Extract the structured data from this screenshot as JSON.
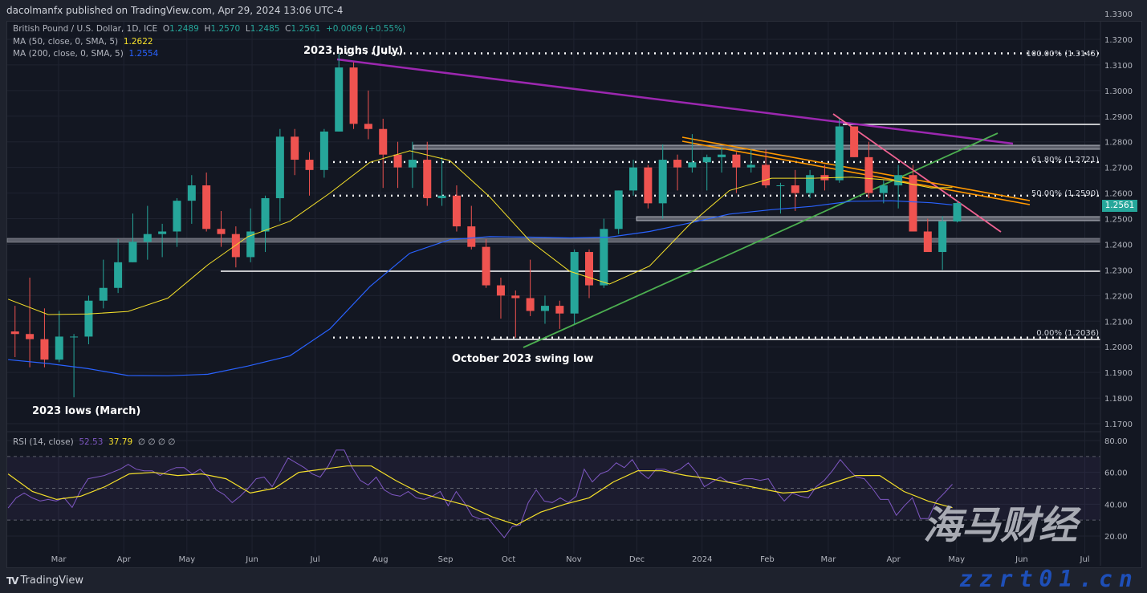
{
  "header": {
    "published": "dacolmanfx published on TradingView.com, Apr 29, 2024 13:06 UTC-4",
    "symbol": "British Pound / U.S. Dollar, 1D, ICE",
    "o_label": "O",
    "o": "1.2489",
    "h_label": "H",
    "h": "1.2570",
    "l_label": "L",
    "l": "1.2485",
    "c_label": "C",
    "c": "1.2561",
    "change": "+0.0069 (+0.55%)",
    "ma50_label": "MA (50, close, 0, SMA, 5)",
    "ma50_value": "1.2622",
    "ma200_label": "MA (200, close, 0, SMA, 5)",
    "ma200_value": "1.2554",
    "rsi_label": "RSI (14, close)",
    "rsi_value": "52.53",
    "rsi_ma_value": "37.79",
    "rsi_extra": "∅ ∅ ∅ ∅"
  },
  "current_price": "1.2561",
  "annotations": {
    "highs": "2023 highs (July)",
    "swing_low": "October 2023 swing low",
    "lows": "2023 lows (March)",
    "fib100": "100.00% (1.3145)",
    "fib618": "61.80% (1.2721)",
    "fib50": "50.00% (1.2590)",
    "fib0": "0.00% (1.2036)"
  },
  "footer": {
    "logo": "TradingView",
    "logo_mark": "TV"
  },
  "watermark": {
    "text": "海马财经",
    "url": "zzrt01.cn"
  },
  "colors": {
    "up": "#26a69a",
    "down": "#ef5350",
    "ma50": "#f5e02a",
    "ma200": "#2962ff",
    "rsi": "#7e57c2",
    "rsi_ma": "#f5e02a",
    "trend_purple": "#9c27b0",
    "trend_green": "#4caf50",
    "trend_pink": "#f06292",
    "trend_orange": "#ff9800"
  },
  "chart_data": [
    {
      "type": "candlestick",
      "title": "British Pound / U.S. Dollar, 1D, ICE",
      "ylim": [
        1.17,
        1.33
      ],
      "y_ticks": [
        "1.3300",
        "1.3200",
        "1.3100",
        "1.3000",
        "1.2900",
        "1.2800",
        "1.2700",
        "1.2600",
        "1.2500",
        "1.2400",
        "1.2300",
        "1.2200",
        "1.2100",
        "1.2000",
        "1.1900",
        "1.1800",
        "1.1700"
      ],
      "x_ticks": [
        [
          "2023-03-01",
          "Mar"
        ],
        [
          "2023-04-01",
          "Apr"
        ],
        [
          "2023-05-01",
          "May"
        ],
        [
          "2023-06-01",
          "Jun"
        ],
        [
          "2023-07-01",
          "Jul"
        ],
        [
          "2023-08-01",
          "Aug"
        ],
        [
          "2023-09-01",
          "Sep"
        ],
        [
          "2023-10-01",
          "Oct"
        ],
        [
          "2023-11-01",
          "Nov"
        ],
        [
          "2023-12-01",
          "Dec"
        ],
        [
          "2024-01-01",
          "2024"
        ],
        [
          "2024-02-01",
          "Feb"
        ],
        [
          "2024-03-01",
          "Mar"
        ],
        [
          "2024-04-01",
          "Apr"
        ],
        [
          "2024-05-01",
          "May"
        ],
        [
          "2024-06-01",
          "Jun"
        ],
        [
          "2024-07-01",
          "Jul"
        ]
      ],
      "candles_ohlc": [
        [
          "2023-02-06",
          1.206,
          1.216,
          1.196,
          1.205
        ],
        [
          "2023-02-13",
          1.205,
          1.227,
          1.192,
          1.203
        ],
        [
          "2023-02-20",
          1.203,
          1.215,
          1.192,
          1.195
        ],
        [
          "2023-02-27",
          1.195,
          1.214,
          1.194,
          1.204
        ],
        [
          "2023-03-06",
          1.204,
          1.205,
          1.1803,
          1.204
        ],
        [
          "2023-03-13",
          1.204,
          1.22,
          1.201,
          1.218
        ],
        [
          "2023-03-20",
          1.218,
          1.234,
          1.215,
          1.223
        ],
        [
          "2023-03-27",
          1.223,
          1.242,
          1.221,
          1.233
        ],
        [
          "2023-04-03",
          1.233,
          1.252,
          1.233,
          1.241
        ],
        [
          "2023-04-10",
          1.241,
          1.255,
          1.234,
          1.244
        ],
        [
          "2023-04-17",
          1.244,
          1.248,
          1.235,
          1.245
        ],
        [
          "2023-04-24",
          1.245,
          1.258,
          1.239,
          1.257
        ],
        [
          "2023-05-01",
          1.257,
          1.267,
          1.248,
          1.263
        ],
        [
          "2023-05-08",
          1.263,
          1.268,
          1.245,
          1.246
        ],
        [
          "2023-05-15",
          1.246,
          1.253,
          1.239,
          1.244
        ],
        [
          "2023-05-22",
          1.244,
          1.247,
          1.231,
          1.235
        ],
        [
          "2023-05-29",
          1.235,
          1.254,
          1.233,
          1.245
        ],
        [
          "2023-06-05",
          1.245,
          1.259,
          1.237,
          1.258
        ],
        [
          "2023-06-12",
          1.258,
          1.285,
          1.249,
          1.282
        ],
        [
          "2023-06-19",
          1.282,
          1.285,
          1.267,
          1.273
        ],
        [
          "2023-06-26",
          1.273,
          1.276,
          1.259,
          1.269
        ],
        [
          "2023-07-03",
          1.269,
          1.285,
          1.266,
          1.284
        ],
        [
          "2023-07-10",
          1.284,
          1.3142,
          1.284,
          1.309
        ],
        [
          "2023-07-17",
          1.309,
          1.311,
          1.285,
          1.287
        ],
        [
          "2023-07-24",
          1.287,
          1.3,
          1.281,
          1.285
        ],
        [
          "2023-07-31",
          1.285,
          1.289,
          1.262,
          1.275
        ],
        [
          "2023-08-07",
          1.275,
          1.28,
          1.262,
          1.27
        ],
        [
          "2023-08-14",
          1.27,
          1.28,
          1.262,
          1.273
        ],
        [
          "2023-08-21",
          1.273,
          1.28,
          1.255,
          1.258
        ],
        [
          "2023-08-28",
          1.258,
          1.274,
          1.255,
          1.259
        ],
        [
          "2023-09-04",
          1.259,
          1.263,
          1.245,
          1.247
        ],
        [
          "2023-09-11",
          1.247,
          1.255,
          1.238,
          1.239
        ],
        [
          "2023-09-18",
          1.239,
          1.242,
          1.223,
          1.224
        ],
        [
          "2023-09-25",
          1.224,
          1.227,
          1.211,
          1.22
        ],
        [
          "2023-10-02",
          1.22,
          1.222,
          1.2036,
          1.219
        ],
        [
          "2023-10-09",
          1.219,
          1.234,
          1.212,
          1.214
        ],
        [
          "2023-10-16",
          1.214,
          1.22,
          1.209,
          1.216
        ],
        [
          "2023-10-23",
          1.216,
          1.218,
          1.207,
          1.213
        ],
        [
          "2023-10-30",
          1.213,
          1.238,
          1.209,
          1.237
        ],
        [
          "2023-11-06",
          1.237,
          1.238,
          1.219,
          1.224
        ],
        [
          "2023-11-13",
          1.224,
          1.25,
          1.223,
          1.246
        ],
        [
          "2023-11-20",
          1.246,
          1.261,
          1.244,
          1.261
        ],
        [
          "2023-11-27",
          1.261,
          1.273,
          1.259,
          1.27
        ],
        [
          "2023-12-04",
          1.27,
          1.271,
          1.254,
          1.256
        ],
        [
          "2023-12-11",
          1.256,
          1.279,
          1.25,
          1.273
        ],
        [
          "2023-12-18",
          1.273,
          1.275,
          1.261,
          1.27
        ],
        [
          "2023-12-25",
          1.27,
          1.283,
          1.268,
          1.272
        ],
        [
          "2024-01-01",
          1.272,
          1.275,
          1.261,
          1.274
        ],
        [
          "2024-01-08",
          1.274,
          1.278,
          1.268,
          1.275
        ],
        [
          "2024-01-15",
          1.275,
          1.276,
          1.26,
          1.27
        ],
        [
          "2024-01-22",
          1.27,
          1.277,
          1.268,
          1.271
        ],
        [
          "2024-01-29",
          1.271,
          1.277,
          1.262,
          1.263
        ],
        [
          "2024-02-05",
          1.263,
          1.264,
          1.252,
          1.263
        ],
        [
          "2024-02-12",
          1.263,
          1.269,
          1.253,
          1.26
        ],
        [
          "2024-02-19",
          1.26,
          1.269,
          1.258,
          1.267
        ],
        [
          "2024-02-26",
          1.267,
          1.271,
          1.261,
          1.265
        ],
        [
          "2024-03-04",
          1.265,
          1.289,
          1.264,
          1.286
        ],
        [
          "2024-03-11",
          1.286,
          1.286,
          1.274,
          1.274
        ],
        [
          "2024-03-18",
          1.274,
          1.28,
          1.258,
          1.26
        ],
        [
          "2024-03-25",
          1.26,
          1.265,
          1.256,
          1.263
        ],
        [
          "2024-04-01",
          1.263,
          1.271,
          1.254,
          1.267
        ],
        [
          "2024-04-08",
          1.267,
          1.271,
          1.245,
          1.245
        ],
        [
          "2024-04-15",
          1.245,
          1.25,
          1.237,
          1.237
        ],
        [
          "2024-04-22",
          1.237,
          1.251,
          1.23,
          1.249
        ],
        [
          "2024-04-29",
          1.2489,
          1.257,
          1.2485,
          1.2561
        ]
      ],
      "ma50": [
        [
          "2023-02-05",
          1.2186
        ],
        [
          "2023-02-24",
          1.2126
        ],
        [
          "2023-03-15",
          1.2128
        ],
        [
          "2023-04-03",
          1.2138
        ],
        [
          "2023-04-22",
          1.219
        ],
        [
          "2023-05-11",
          1.232
        ],
        [
          "2023-05-30",
          1.243
        ],
        [
          "2023-06-19",
          1.249
        ],
        [
          "2023-07-08",
          1.26
        ],
        [
          "2023-07-27",
          1.272
        ],
        [
          "2023-08-15",
          1.2765
        ],
        [
          "2023-09-03",
          1.2727
        ],
        [
          "2023-09-22",
          1.2585
        ],
        [
          "2023-10-11",
          1.2414
        ],
        [
          "2023-10-30",
          1.2295
        ],
        [
          "2023-11-18",
          1.2245
        ],
        [
          "2023-12-07",
          1.2315
        ],
        [
          "2023-12-26",
          1.2477
        ],
        [
          "2024-01-14",
          1.261
        ],
        [
          "2024-02-03",
          1.2658
        ],
        [
          "2024-02-22",
          1.2658
        ],
        [
          "2024-03-12",
          1.2662
        ],
        [
          "2024-03-31",
          1.265
        ],
        [
          "2024-04-19",
          1.262
        ],
        [
          "2024-04-29",
          1.2622
        ]
      ],
      "ma200": [
        [
          "2023-02-05",
          1.195
        ],
        [
          "2023-02-24",
          1.1935
        ],
        [
          "2023-03-15",
          1.1915
        ],
        [
          "2023-04-03",
          1.1888
        ],
        [
          "2023-04-22",
          1.1887
        ],
        [
          "2023-05-11",
          1.1893
        ],
        [
          "2023-05-30",
          1.1925
        ],
        [
          "2023-06-19",
          1.1965
        ],
        [
          "2023-07-08",
          1.207
        ],
        [
          "2023-07-27",
          1.2235
        ],
        [
          "2023-08-15",
          1.2365
        ],
        [
          "2023-09-03",
          1.2418
        ],
        [
          "2023-09-22",
          1.243
        ],
        [
          "2023-10-11",
          1.2428
        ],
        [
          "2023-10-30",
          1.2425
        ],
        [
          "2023-11-18",
          1.2428
        ],
        [
          "2023-12-07",
          1.245
        ],
        [
          "2023-12-26",
          1.2483
        ],
        [
          "2024-01-14",
          1.2518
        ],
        [
          "2024-02-03",
          1.2535
        ],
        [
          "2024-02-22",
          1.2548
        ],
        [
          "2024-03-12",
          1.2568
        ],
        [
          "2024-03-31",
          1.257
        ],
        [
          "2024-04-19",
          1.2562
        ],
        [
          "2024-04-29",
          1.2554
        ]
      ],
      "fib_levels": [
        {
          "level": "100.00%",
          "price": 1.3145
        },
        {
          "level": "61.80%",
          "price": 1.2721
        },
        {
          "level": "50.00%",
          "price": 1.259
        },
        {
          "level": "0.00%",
          "price": 1.2036
        }
      ],
      "horizontal_levels": [
        1.2893,
        1.28,
        1.251,
        1.243,
        1.23
      ]
    },
    {
      "type": "line",
      "title": "RSI (14, close)",
      "ylim": [
        10,
        90
      ],
      "y_ticks": [
        "80.00",
        "60.00",
        "40.00",
        "20.00"
      ],
      "bands": [
        70,
        50,
        30
      ],
      "date_range": [
        "2023-02-05",
        "2024-04-29"
      ],
      "rsi": [
        37.6,
        44,
        47,
        44,
        42,
        43,
        42,
        44,
        38,
        48,
        56,
        57,
        58,
        60,
        62,
        65,
        62,
        61,
        61,
        58,
        61,
        63,
        63,
        59,
        62,
        57,
        49,
        46,
        41,
        45,
        50,
        56,
        57,
        51,
        60,
        69,
        66,
        63,
        59,
        57,
        64,
        74,
        74,
        63,
        55,
        52,
        57,
        49,
        46,
        45,
        48,
        44,
        43,
        45,
        48,
        39,
        48,
        41,
        32.6,
        30.6,
        31,
        25,
        19,
        26,
        27,
        41,
        49,
        42,
        41,
        44,
        41,
        45,
        62,
        54,
        59,
        61,
        66,
        63,
        68,
        60,
        56,
        62,
        62,
        60,
        62,
        66,
        60,
        51,
        54,
        57,
        54,
        54,
        56,
        56,
        55,
        56,
        48,
        42,
        47,
        45,
        44,
        51,
        55,
        61,
        68,
        62,
        57,
        56,
        50,
        43,
        43,
        33,
        39,
        44,
        31,
        31,
        42,
        47,
        52.53
      ],
      "rsi_ma": [
        59,
        48,
        43,
        45,
        51,
        59,
        60,
        58,
        59,
        56,
        47,
        50,
        60,
        62,
        64,
        64,
        55,
        47,
        43,
        39,
        32,
        27,
        35,
        40,
        44,
        54,
        61,
        61,
        58,
        56,
        53,
        50,
        47,
        48,
        53,
        58,
        58,
        48,
        42,
        37.79
      ]
    }
  ]
}
